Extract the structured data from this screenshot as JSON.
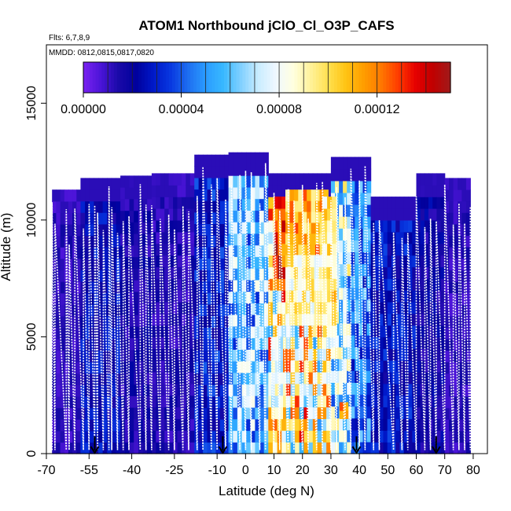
{
  "chart_data": {
    "type": "heatmap",
    "title": "ATOM1 Northbound jClO_Cl_O3P_CAFS",
    "subtitle_flights": "Flts: 6,7,8,9",
    "subtitle_dates": "MMDD: 0812,0815,0817,0820",
    "xlabel": "Latitude (deg N)",
    "ylabel": "Altitude (m)",
    "xlim": [
      -70,
      85
    ],
    "ylim": [
      0,
      17500
    ],
    "x_ticks": [
      {
        "v": -70,
        "label": "-70"
      },
      {
        "v": -55,
        "label": "-55"
      },
      {
        "v": -40,
        "label": "-40"
      },
      {
        "v": -25,
        "label": "-25"
      },
      {
        "v": -10,
        "label": "-10"
      },
      {
        "v": 0,
        "label": "0"
      },
      {
        "v": 10,
        "label": "10"
      },
      {
        "v": 20,
        "label": "20"
      },
      {
        "v": 30,
        "label": "30"
      },
      {
        "v": 40,
        "label": "40"
      },
      {
        "v": 50,
        "label": "50"
      },
      {
        "v": 60,
        "label": "60"
      },
      {
        "v": 70,
        "label": "70"
      },
      {
        "v": 80,
        "label": "80"
      }
    ],
    "y_ticks": [
      {
        "v": 0,
        "label": "0"
      },
      {
        "v": 5000,
        "label": "5000"
      },
      {
        "v": 10000,
        "label": "10000"
      },
      {
        "v": 15000,
        "label": "15000"
      }
    ],
    "colorbar": {
      "range": [
        0,
        0.00015
      ],
      "ticks": [
        {
          "v": 0,
          "label": "0.00000"
        },
        {
          "v": 4e-05,
          "label": "0.00004"
        },
        {
          "v": 8e-05,
          "label": "0.00008"
        },
        {
          "v": 0.00012,
          "label": "0.00012"
        }
      ],
      "colors": [
        "#7a22f0",
        "#4b14d8",
        "#1a0aa8",
        "#00009c",
        "#0018c8",
        "#0838e0",
        "#1e6ef0",
        "#2a9cff",
        "#38b8ff",
        "#80d0ff",
        "#c8ecff",
        "#f0f8ff",
        "#ffffe0",
        "#fff29a",
        "#ffe050",
        "#ffc414",
        "#ff9e00",
        "#ff7a00",
        "#ff3c00",
        "#e60000",
        "#c00000",
        "#a01a1a"
      ],
      "separators": [
        1e-05,
        2e-05,
        3e-05,
        4e-05,
        5e-05,
        6e-05,
        7e-05,
        8e-05,
        9e-05,
        0.0001,
        0.00011,
        0.00012,
        0.00013,
        0.00014
      ]
    },
    "segments": [
      {
        "lat_min": -68,
        "lat_max": -58,
        "alt_top": 11300,
        "value": 1.2e-05
      },
      {
        "lat_min": -58,
        "lat_max": -44,
        "alt_top": 11800,
        "value": 2.4e-05
      },
      {
        "lat_min": -44,
        "lat_max": -33,
        "alt_top": 11900,
        "value": 1.6e-05
      },
      {
        "lat_min": -33,
        "lat_max": -18,
        "alt_top": 12000,
        "value": 1.4e-05
      },
      {
        "lat_min": -18,
        "lat_max": -6,
        "alt_top": 12800,
        "value": 2.8e-05
      },
      {
        "lat_min": -6,
        "lat_max": 8,
        "alt_top": 12900,
        "value": 5.8e-05
      },
      {
        "lat_min": 8,
        "lat_max": 22,
        "alt_top": 12000,
        "value": 9.5e-05
      },
      {
        "lat_min": 22,
        "lat_max": 30,
        "alt_top": 12000,
        "value": 8.8e-05
      },
      {
        "lat_min": 30,
        "lat_max": 37,
        "alt_top": 12700,
        "value": 6.8e-05
      },
      {
        "lat_min": 37,
        "lat_max": 44,
        "alt_top": 12700,
        "value": 4.5e-05
      },
      {
        "lat_min": 44,
        "lat_max": 60,
        "alt_top": 11000,
        "value": 2.6e-05
      },
      {
        "lat_min": 60,
        "lat_max": 70,
        "alt_top": 12000,
        "value": 1.8e-05
      },
      {
        "lat_min": 70,
        "lat_max": 79,
        "alt_top": 11800,
        "value": 1.2e-05
      }
    ],
    "hotspots": [
      {
        "lat_min": 10,
        "lat_max": 14,
        "alt_min": 7000,
        "alt_max": 11000,
        "value": 0.000138
      },
      {
        "lat_min": 14,
        "lat_max": 29,
        "alt_min": 8500,
        "alt_max": 11300,
        "value": 0.000112
      },
      {
        "lat_min": 14,
        "lat_max": 27,
        "alt_min": 5500,
        "alt_max": 8500,
        "value": 9.2e-05
      },
      {
        "lat_min": 27,
        "lat_max": 32,
        "alt_min": 5000,
        "alt_max": 11000,
        "value": 9.8e-05
      },
      {
        "lat_min": 9,
        "lat_max": 13,
        "alt_min": 1500,
        "alt_max": 5000,
        "value": 8.2e-05
      },
      {
        "lat_min": 33,
        "lat_max": 36,
        "alt_min": 1500,
        "alt_max": 2200,
        "value": 0.000118
      }
    ],
    "flight_track_latitudes": [
      -68,
      -67,
      -63,
      -62,
      -60,
      -57,
      -55,
      -53,
      -52,
      -50,
      -48,
      -47,
      -45,
      -43,
      -41,
      -37,
      -35,
      -33,
      -30,
      -27,
      -25,
      -22,
      -20,
      -17,
      -15,
      -12,
      -10,
      -7,
      -5,
      -2,
      0,
      2,
      5,
      7,
      10,
      12,
      15,
      17,
      20,
      22,
      25,
      27,
      30,
      32,
      35,
      37,
      40,
      42,
      45,
      47,
      52,
      55,
      57,
      60,
      63,
      65,
      67,
      70,
      73,
      75,
      77,
      79
    ],
    "arrow_latitudes": [
      -53,
      -8,
      39,
      67
    ]
  }
}
